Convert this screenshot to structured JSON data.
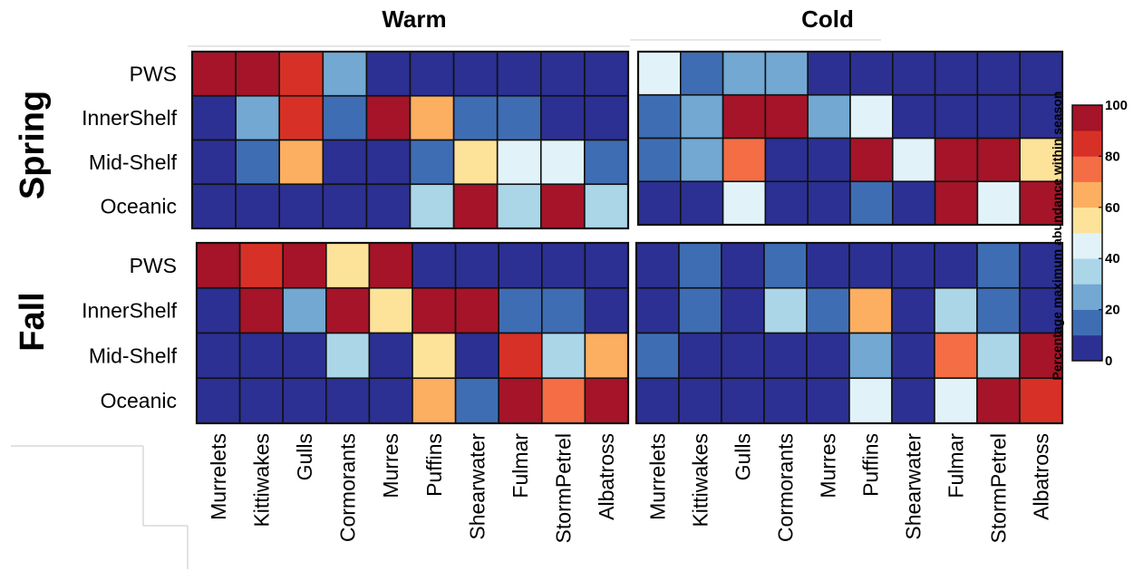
{
  "chart_data": {
    "type": "heatmap",
    "column_titles": [
      "Warm",
      "Cold"
    ],
    "row_titles": [
      "Spring",
      "Fall"
    ],
    "row_labels": [
      "PWS",
      "InnerShelf",
      "Mid-Shelf",
      "Oceanic"
    ],
    "categories": [
      "Murrelets",
      "Kittiwakes",
      "Gulls",
      "Cormorants",
      "Murres",
      "Puffins",
      "Shearwater",
      "Fulmar",
      "StormPetrel",
      "Albatross"
    ],
    "colorbar": {
      "label": "Percentage maximum abundance within season",
      "ticks": [
        "100",
        "80",
        "60",
        "40",
        "20",
        "0"
      ],
      "range": [
        0,
        100
      ],
      "bin_colors": [
        "#2c3092",
        "#3f6db3",
        "#72a8d2",
        "#aad6e8",
        "#e1f3f8",
        "#fde39a",
        "#fcae61",
        "#f46d45",
        "#d73127",
        "#a51428"
      ]
    },
    "panels": [
      {
        "name": "Spring-Warm",
        "values": [
          [
            95,
            95,
            85,
            25,
            5,
            5,
            5,
            5,
            5,
            5
          ],
          [
            5,
            25,
            85,
            15,
            95,
            65,
            15,
            15,
            5,
            5
          ],
          [
            5,
            15,
            65,
            5,
            5,
            15,
            55,
            45,
            45,
            15
          ],
          [
            5,
            5,
            5,
            5,
            5,
            35,
            95,
            35,
            95,
            35
          ]
        ]
      },
      {
        "name": "Spring-Cold",
        "values": [
          [
            45,
            15,
            25,
            25,
            5,
            5,
            5,
            5,
            5,
            5
          ],
          [
            15,
            25,
            95,
            95,
            25,
            45,
            5,
            5,
            5,
            5
          ],
          [
            15,
            25,
            75,
            5,
            5,
            95,
            45,
            95,
            95,
            55
          ],
          [
            5,
            5,
            45,
            5,
            5,
            15,
            5,
            95,
            45,
            95
          ]
        ]
      },
      {
        "name": "Fall-Warm",
        "values": [
          [
            95,
            85,
            95,
            55,
            95,
            5,
            5,
            5,
            5,
            5
          ],
          [
            5,
            95,
            25,
            95,
            55,
            95,
            95,
            15,
            15,
            5
          ],
          [
            5,
            5,
            5,
            35,
            5,
            55,
            5,
            85,
            35,
            65
          ],
          [
            5,
            5,
            5,
            5,
            5,
            65,
            15,
            95,
            75,
            95
          ]
        ]
      },
      {
        "name": "Fall-Cold",
        "values": [
          [
            5,
            15,
            5,
            15,
            5,
            5,
            5,
            5,
            15,
            5
          ],
          [
            5,
            15,
            5,
            35,
            15,
            65,
            5,
            35,
            15,
            5
          ],
          [
            15,
            5,
            5,
            5,
            5,
            25,
            5,
            75,
            35,
            95
          ],
          [
            5,
            5,
            5,
            5,
            5,
            45,
            5,
            45,
            95,
            85
          ]
        ]
      }
    ]
  }
}
